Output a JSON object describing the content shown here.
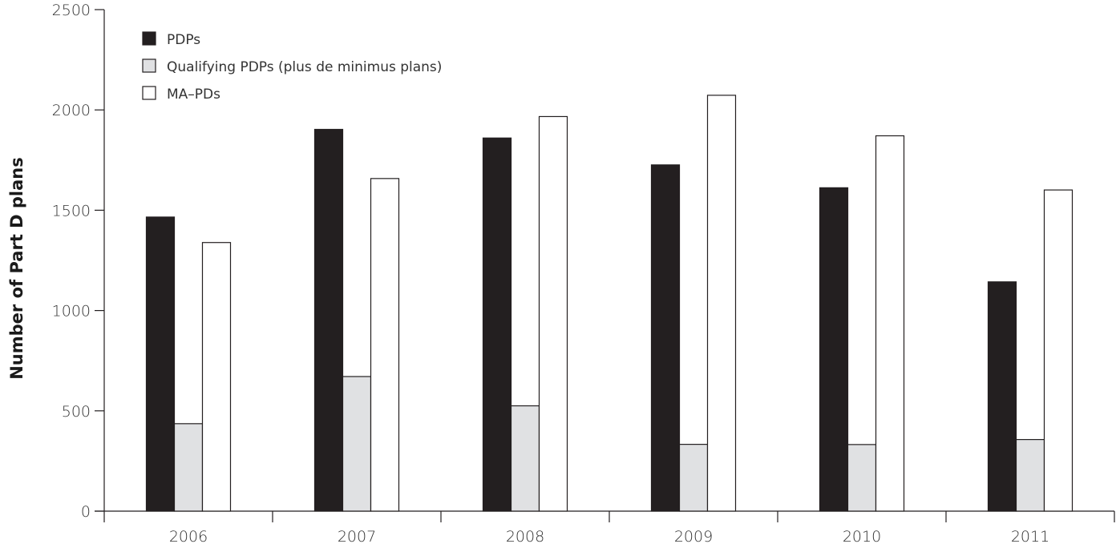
{
  "chart_data": {
    "type": "bar",
    "title": "",
    "xlabel": "",
    "ylabel": "Number of Part D plans",
    "ylim": [
      0,
      2500
    ],
    "yticks": [
      0,
      500,
      1000,
      1500,
      2000,
      2500
    ],
    "categories": [
      "2006",
      "2007",
      "2008",
      "2009",
      "2010",
      "2011"
    ],
    "series": [
      {
        "name": "PDPs",
        "color": "#231f20",
        "values": [
          1466,
          1903,
          1860,
          1726,
          1612,
          1143
        ]
      },
      {
        "name": "Qualifying PDPs (plus de minimus plans)",
        "color": "#e0e1e3",
        "values": [
          436,
          671,
          525,
          333,
          332,
          357
        ]
      },
      {
        "name": "MA–PDs",
        "color": "#ffffff",
        "values": [
          1339,
          1658,
          1967,
          2073,
          1871,
          1601
        ]
      }
    ],
    "grid": false,
    "legend_position": "top-left"
  }
}
